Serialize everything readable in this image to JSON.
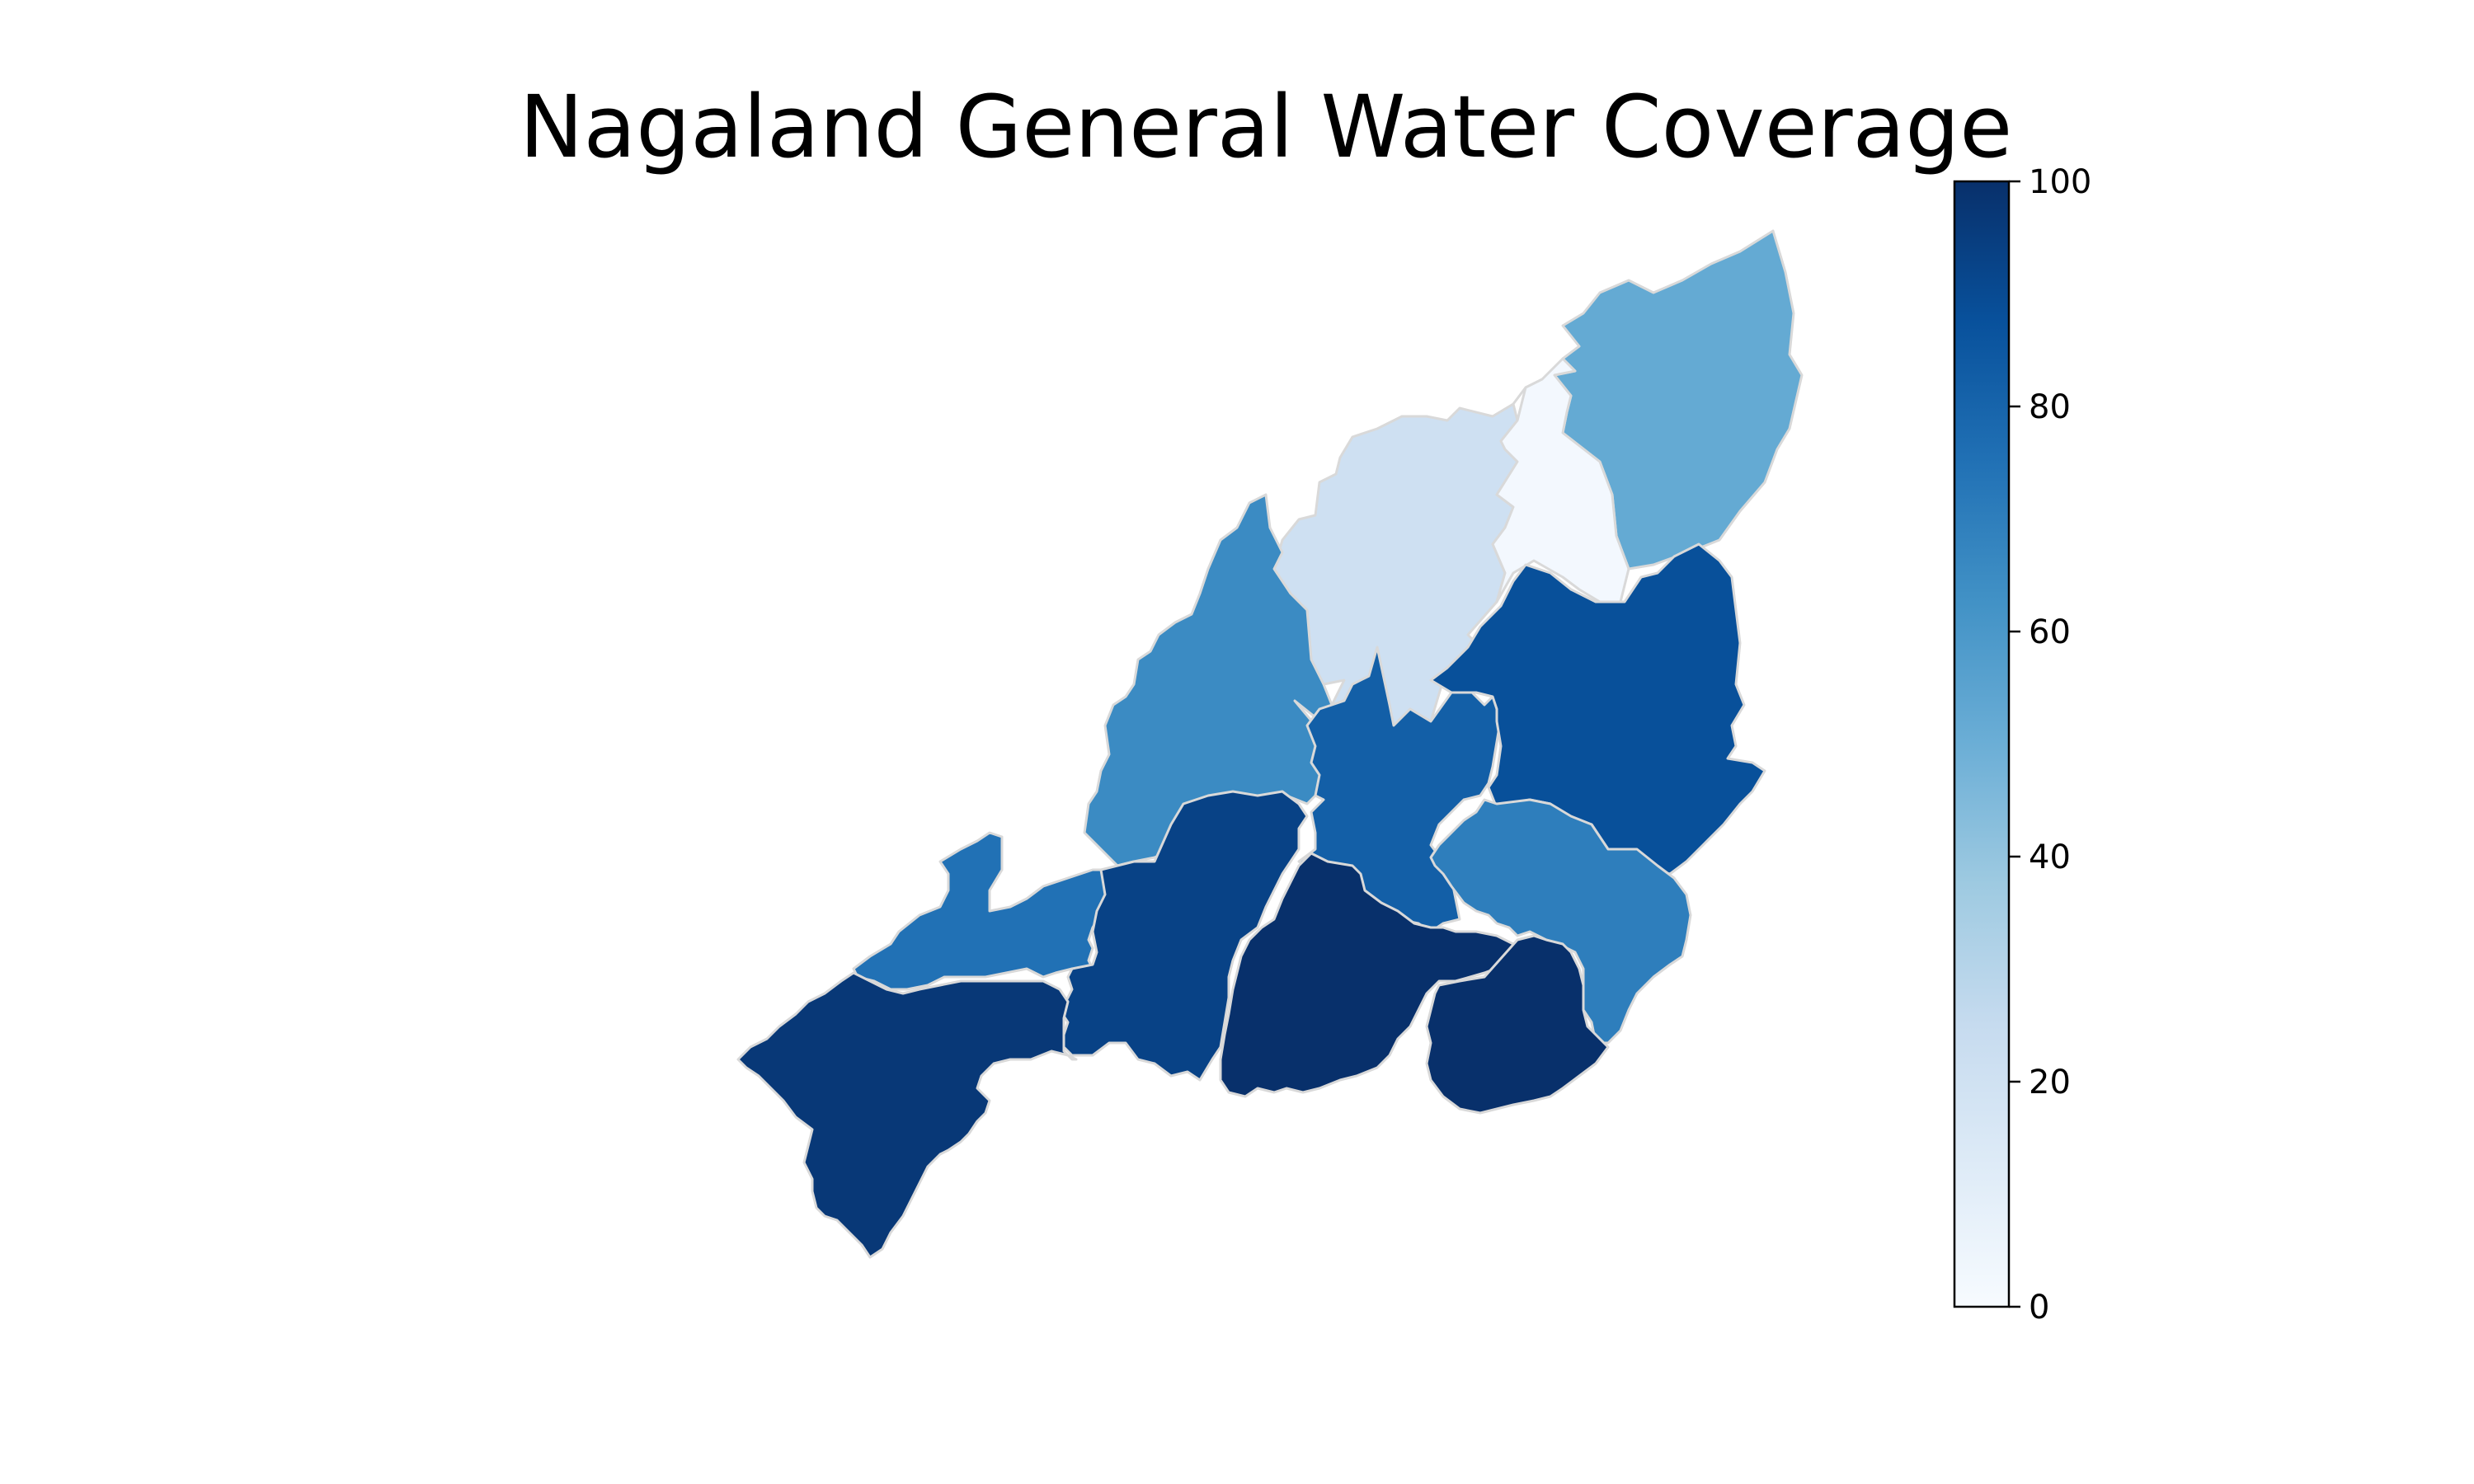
{
  "title": "Nagaland General Water Coverage",
  "colorbar": {
    "colormap": "Blues",
    "min": 0,
    "max": 100,
    "ticks": [
      "0",
      "20",
      "40",
      "60",
      "80",
      "100"
    ]
  },
  "districts": [
    {
      "id": "far-north",
      "value": 52
    },
    {
      "id": "north-centre-left",
      "value": 21
    },
    {
      "id": "north-centre-right",
      "value": 2
    },
    {
      "id": "north-west",
      "value": 65
    },
    {
      "id": "central",
      "value": 82
    },
    {
      "id": "east",
      "value": 88
    },
    {
      "id": "west",
      "value": 75
    },
    {
      "id": "central-west",
      "value": 93
    },
    {
      "id": "south-east",
      "value": 70
    },
    {
      "id": "south-centre",
      "value": 100
    },
    {
      "id": "south-east-lobe",
      "value": 100
    },
    {
      "id": "south-west",
      "value": 97
    }
  ]
}
